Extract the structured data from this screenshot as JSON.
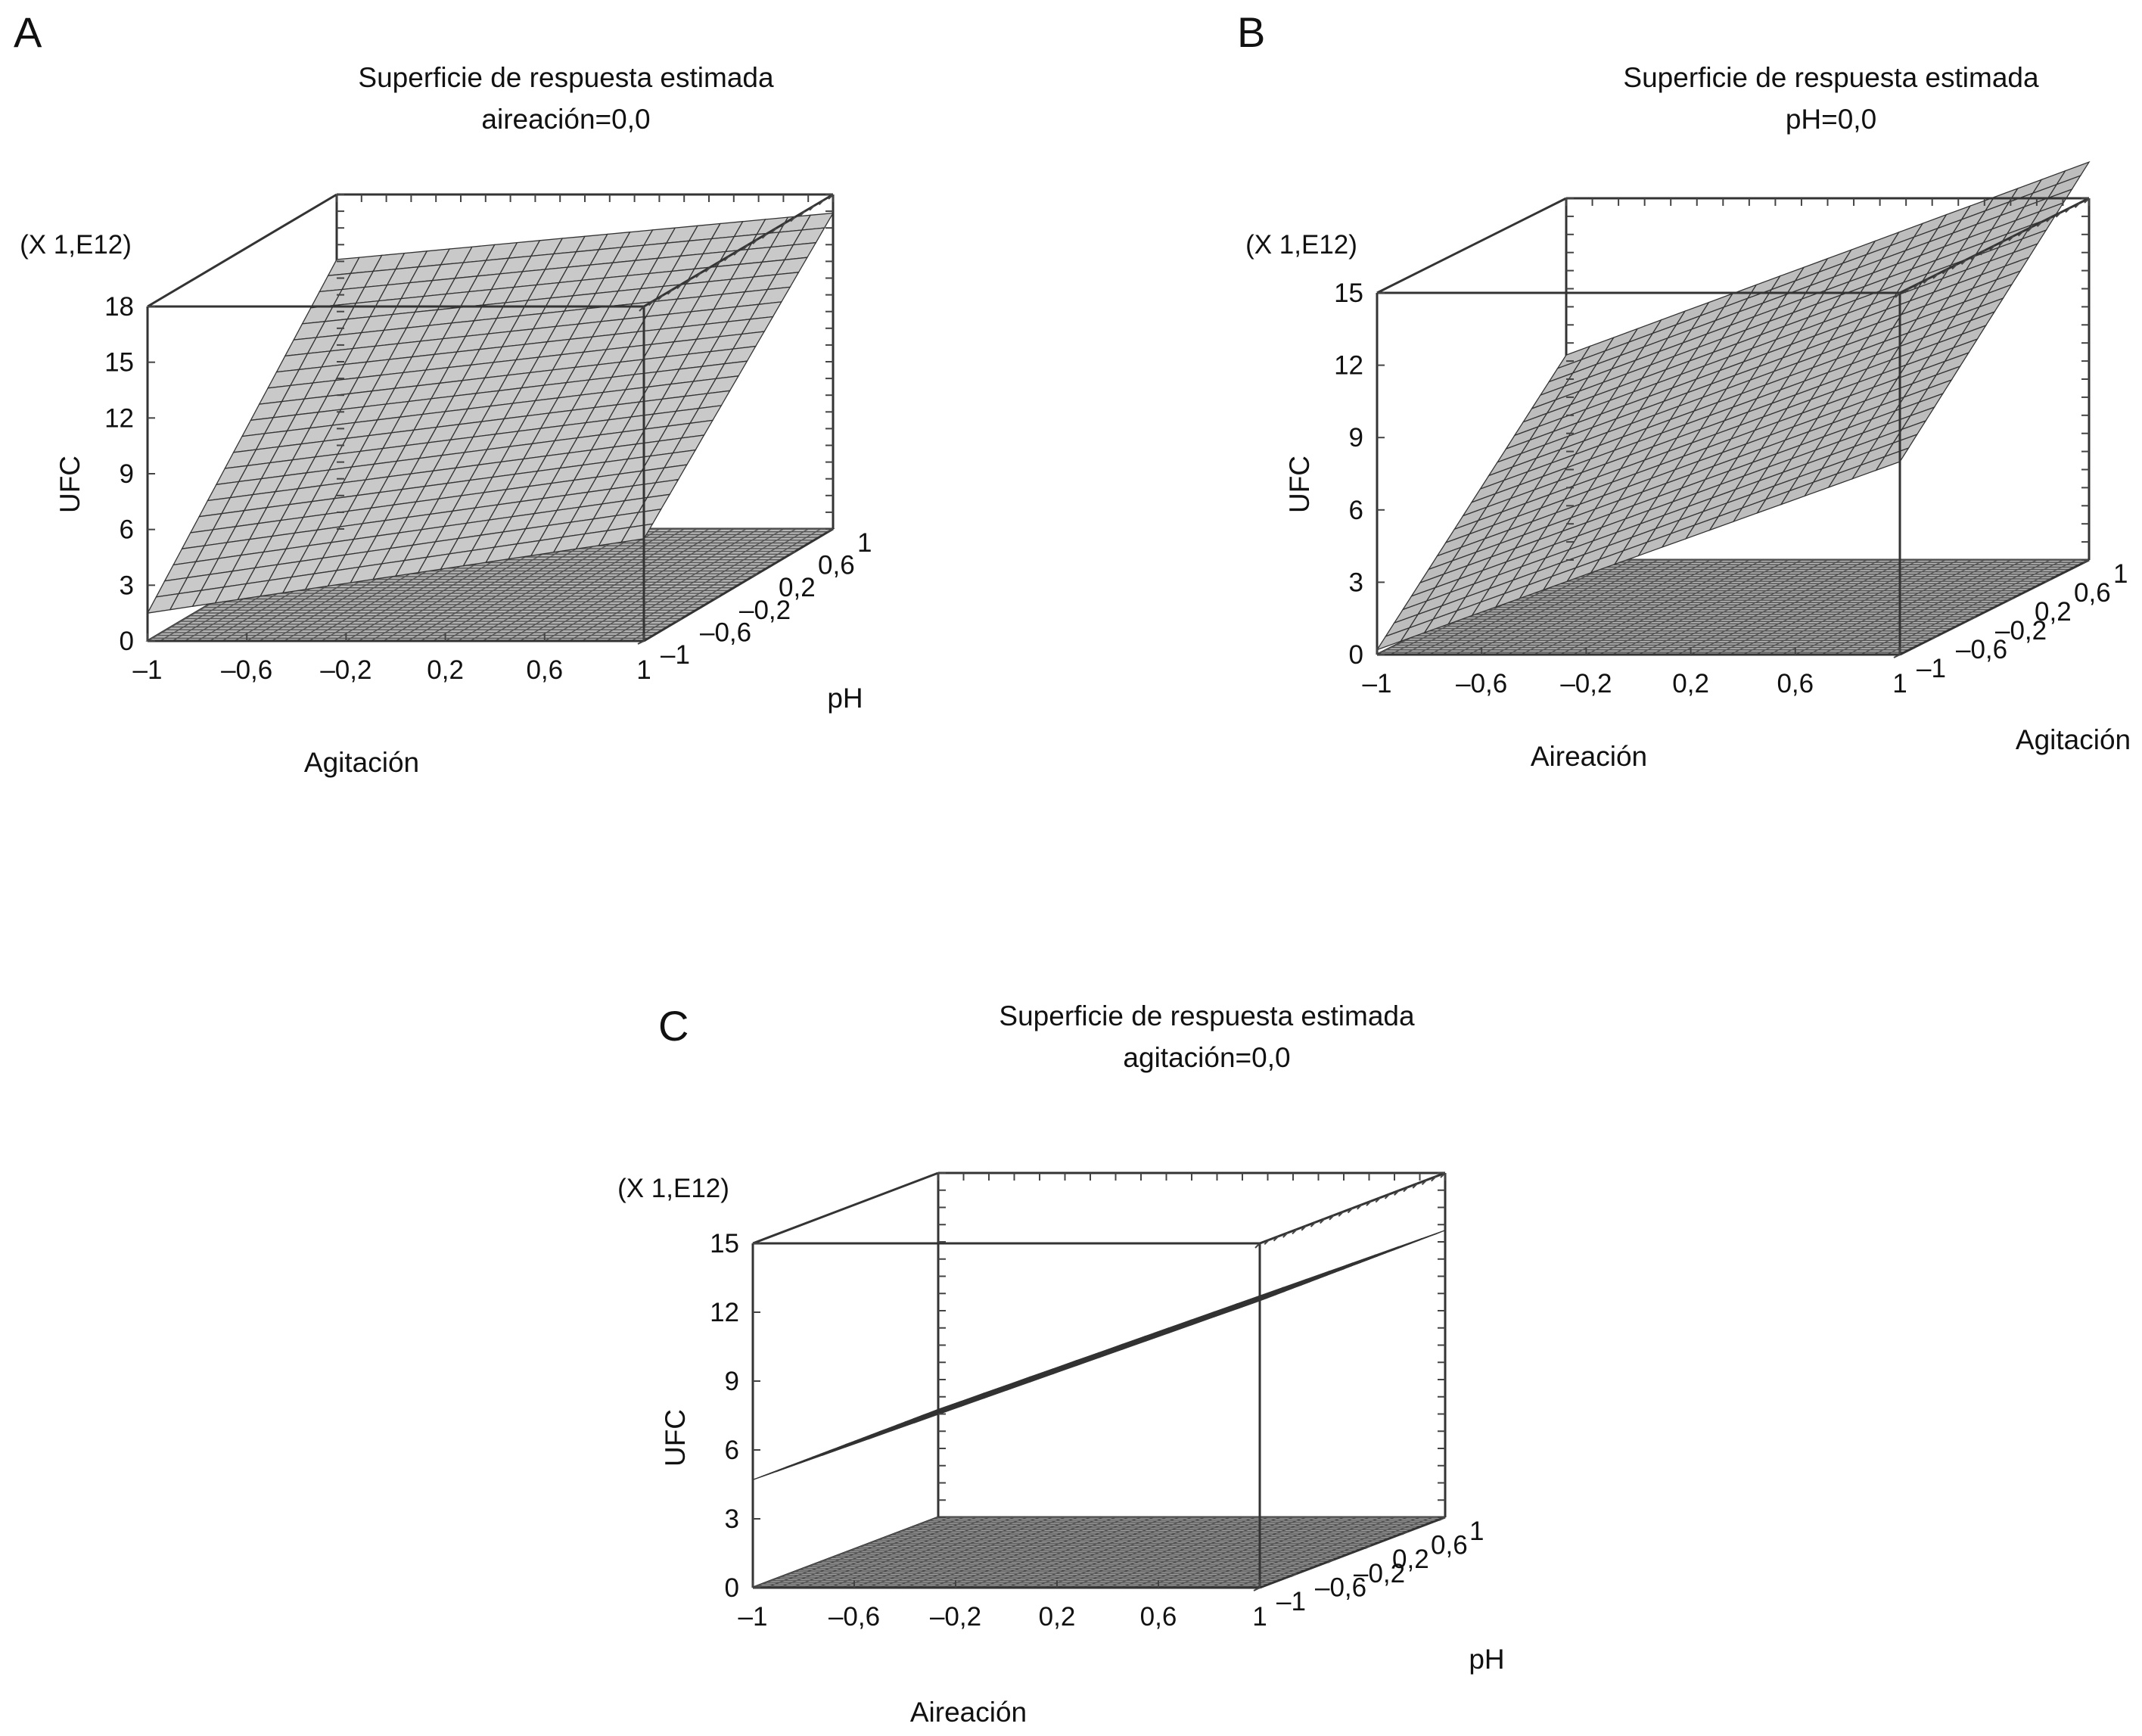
{
  "chart_data": [
    {
      "type": "surface3d",
      "panel": "A",
      "title": "Superficie de respuesta estimada",
      "subtitle": "aireación=0,0",
      "xlabel": "Agitación",
      "ylabel": "pH",
      "zlabel": "UFC",
      "zscale": "(X 1,E12)",
      "xlim": [
        -1,
        1
      ],
      "ylim": [
        -1,
        1
      ],
      "zlim": [
        0,
        18
      ],
      "x_ticks": [
        "–1",
        "–0,6",
        "–0,2",
        "0,2",
        "0,6",
        "1"
      ],
      "y_ticks": [
        "–1",
        "–0,6",
        "–0,2",
        "0,2",
        "0,6",
        "1"
      ],
      "z_ticks": [
        "0",
        "3",
        "6",
        "9",
        "12",
        "15",
        "18"
      ],
      "corners": {
        "x-1_y-1": 1.5,
        "x1_y-1": 5.5,
        "x-1_y1": 14.5,
        "x1_y1": 17.0
      },
      "grid": true
    },
    {
      "type": "surface3d",
      "panel": "B",
      "title": "Superficie de respuesta estimada",
      "subtitle": "pH=0,0",
      "xlabel": "Aireación",
      "ylabel": "Agitación",
      "zlabel": "UFC",
      "zscale": "(X 1,E12)",
      "xlim": [
        -1,
        1
      ],
      "ylim": [
        -1,
        1
      ],
      "zlim": [
        0,
        15
      ],
      "x_ticks": [
        "–1",
        "–0,6",
        "–0,2",
        "0,2",
        "0,6",
        "1"
      ],
      "y_ticks": [
        "–1",
        "–0,6",
        "–0,2",
        "0,2",
        "0,6",
        "1"
      ],
      "z_ticks": [
        "0",
        "3",
        "6",
        "9",
        "12",
        "15"
      ],
      "corners": {
        "x-1_y-1": 0.2,
        "x1_y-1": 8.0,
        "x-1_y1": 8.5,
        "x1_y1": 16.5
      },
      "grid": true
    },
    {
      "type": "surface3d",
      "panel": "C",
      "title": "Superficie de respuesta estimada",
      "subtitle": "agitación=0,0",
      "xlabel": "Aireación",
      "ylabel": "pH",
      "zlabel": "UFC",
      "zscale": "(X 1,E12)",
      "xlim": [
        -1,
        1
      ],
      "ylim": [
        -1,
        1
      ],
      "zlim": [
        0,
        15
      ],
      "x_ticks": [
        "–1",
        "–0,6",
        "–0,2",
        "0,2",
        "0,6",
        "1"
      ],
      "y_ticks": [
        "–1",
        "–0,6",
        "–0,2",
        "0,2",
        "0,6",
        "1"
      ],
      "z_ticks": [
        "0",
        "3",
        "6",
        "9",
        "12",
        "15"
      ],
      "corners": {
        "x-1_y-1": 4.7,
        "x1_y-1": 12.5,
        "x-1_y1": 4.7,
        "x1_y1": 12.5
      },
      "grid": true
    }
  ]
}
